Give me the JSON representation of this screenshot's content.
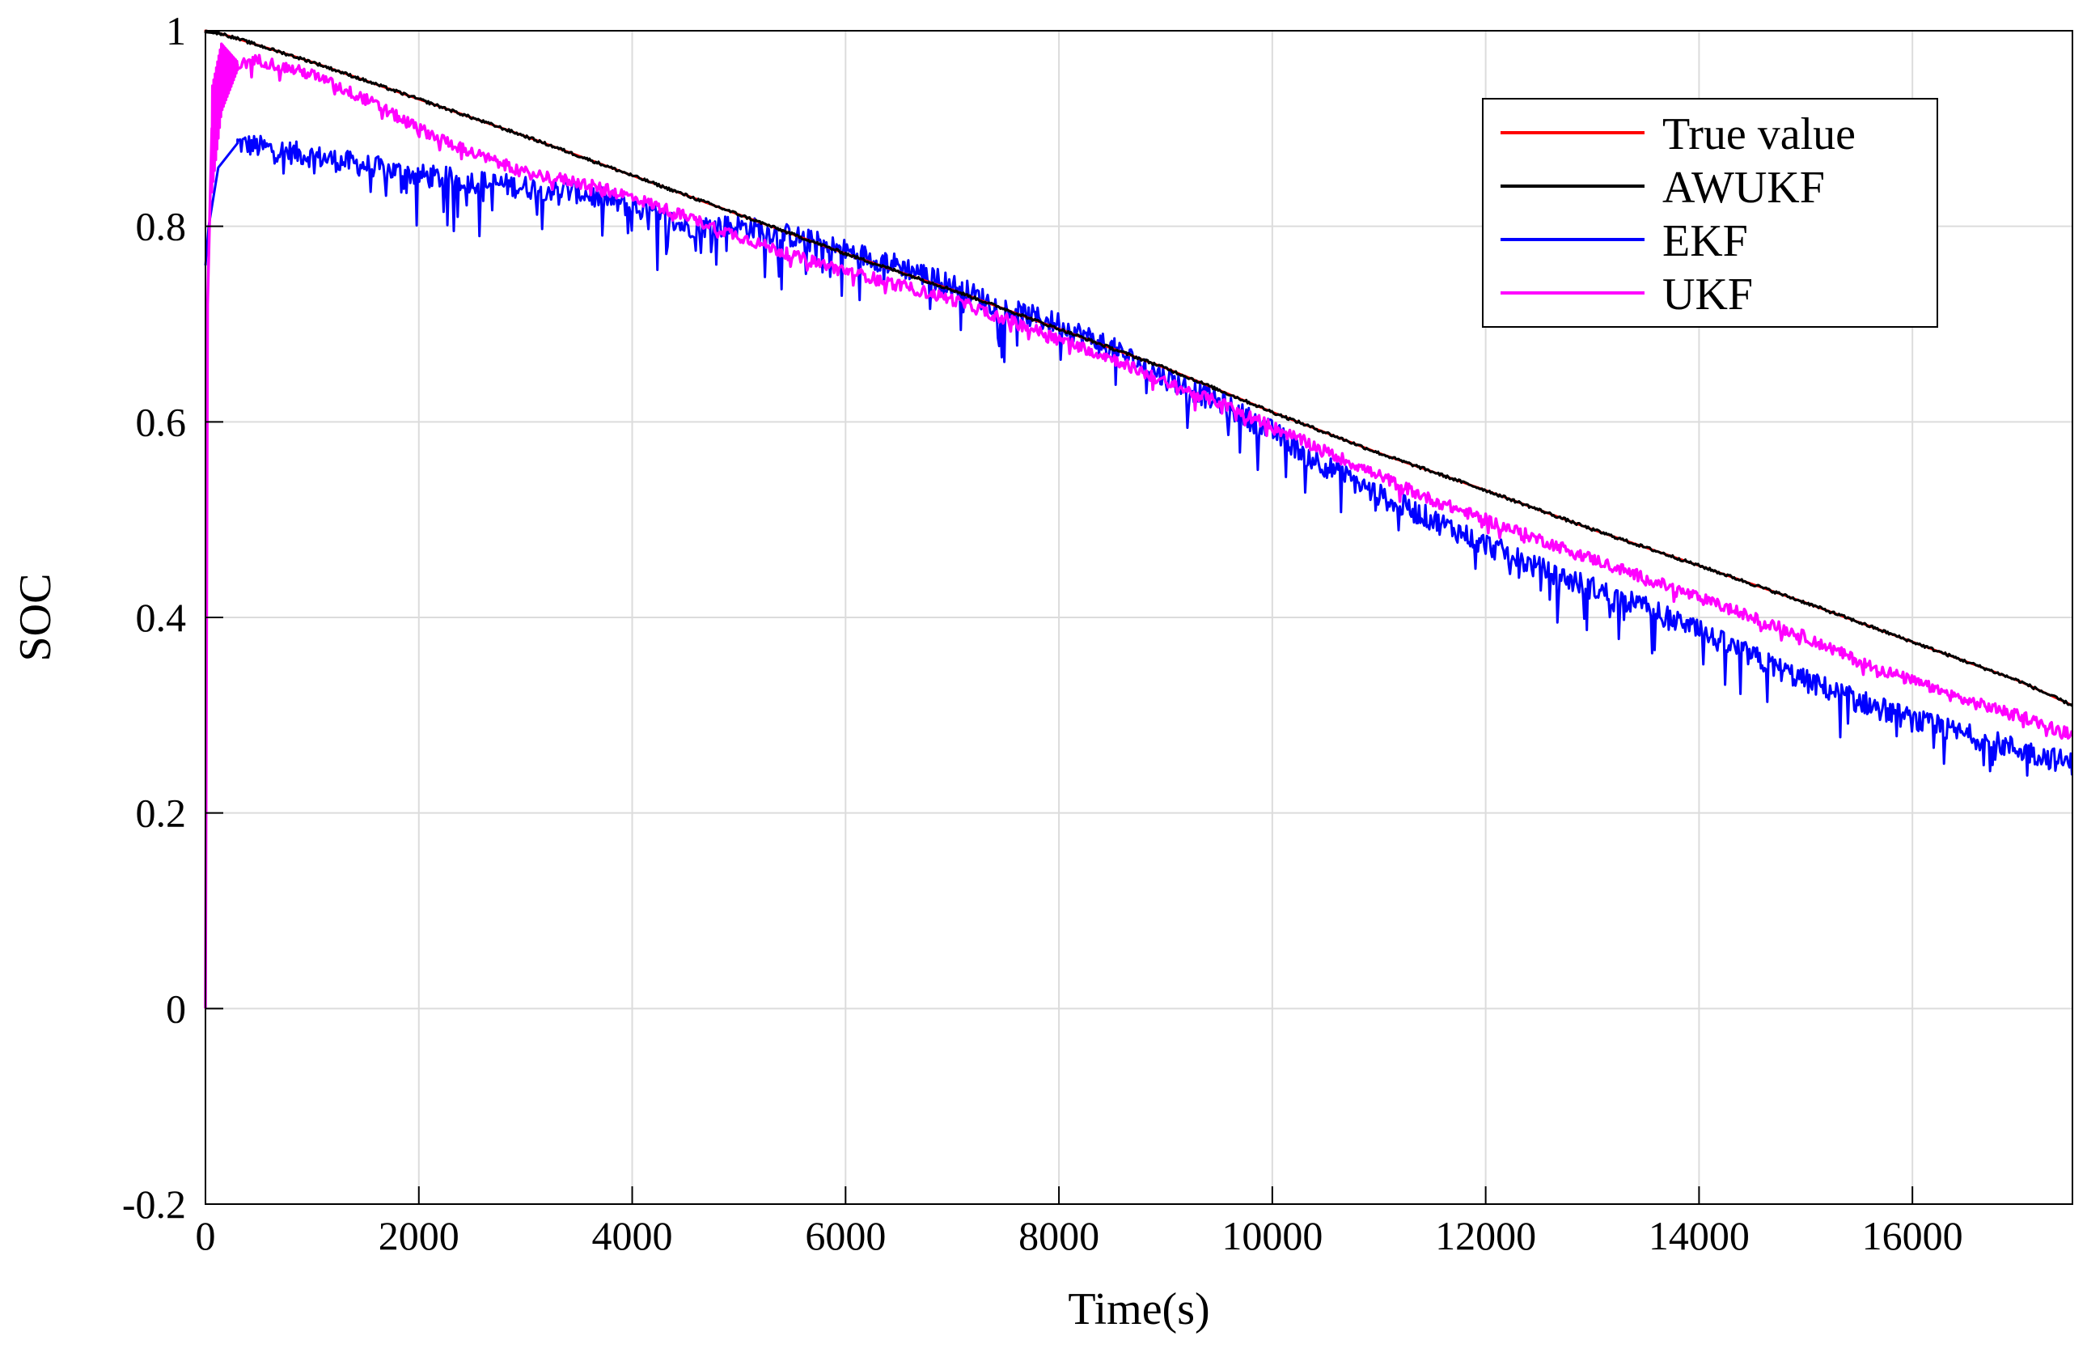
{
  "chart_data": {
    "type": "line",
    "title": "",
    "xlabel": "Time(s)",
    "ylabel": "SOC",
    "xlim": [
      0,
      17500
    ],
    "ylim": [
      -0.2,
      1
    ],
    "xticks": [
      0,
      2000,
      4000,
      6000,
      8000,
      10000,
      12000,
      14000,
      16000
    ],
    "xtick_labels": [
      "0",
      "2000",
      "4000",
      "6000",
      "8000",
      "10000",
      "12000",
      "14000",
      "16000"
    ],
    "yticks": [
      -0.2,
      0,
      0.2,
      0.4,
      0.6,
      0.8,
      1
    ],
    "ytick_labels": [
      "-0.2",
      "0",
      "0.2",
      "0.4",
      "0.6",
      "0.8",
      "1"
    ],
    "grid": true,
    "legend_position": "top-right",
    "series": [
      {
        "name": "True value",
        "color": "#ff0000",
        "x": [
          0,
          150,
          500,
          1000,
          2000,
          3000,
          4000,
          5000,
          6000,
          7000,
          8000,
          9000,
          10000,
          11000,
          12000,
          13000,
          14000,
          15000,
          16000,
          17000,
          17500
        ],
        "y": [
          1.0,
          0.997,
          0.985,
          0.968,
          0.93,
          0.892,
          0.852,
          0.812,
          0.772,
          0.735,
          0.695,
          0.655,
          0.61,
          0.568,
          0.53,
          0.49,
          0.453,
          0.415,
          0.375,
          0.335,
          0.31
        ]
      },
      {
        "name": "AWUKF",
        "color": "#000000",
        "x": [
          0,
          150,
          500,
          1000,
          2000,
          3000,
          4000,
          5000,
          6000,
          7000,
          8000,
          9000,
          10000,
          11000,
          12000,
          13000,
          14000,
          15000,
          16000,
          17000,
          17500
        ],
        "y": [
          1.0,
          0.997,
          0.985,
          0.968,
          0.93,
          0.892,
          0.852,
          0.812,
          0.772,
          0.735,
          0.695,
          0.655,
          0.61,
          0.568,
          0.53,
          0.49,
          0.453,
          0.415,
          0.375,
          0.335,
          0.31
        ]
      },
      {
        "name": "EKF",
        "color": "#0000ff",
        "x": [
          0,
          30,
          120,
          300,
          1000,
          2000,
          3000,
          3500,
          4000,
          4500,
          5000,
          5500,
          6000,
          6500,
          7000,
          7500,
          8000,
          8500,
          9000,
          9500,
          10000,
          10500,
          11000,
          11500,
          12000,
          12500,
          13000,
          13500,
          14000,
          14500,
          15000,
          15500,
          16000,
          16500,
          17000,
          17500
        ],
        "y": [
          0.76,
          0.8,
          0.86,
          0.885,
          0.872,
          0.852,
          0.84,
          0.835,
          0.82,
          0.8,
          0.8,
          0.79,
          0.775,
          0.76,
          0.74,
          0.715,
          0.7,
          0.675,
          0.645,
          0.62,
          0.59,
          0.555,
          0.525,
          0.5,
          0.475,
          0.45,
          0.43,
          0.41,
          0.385,
          0.36,
          0.335,
          0.315,
          0.295,
          0.28,
          0.265,
          0.25
        ]
      },
      {
        "name": "UKF",
        "color": "#ff00ff",
        "x": [
          0,
          20,
          60,
          150,
          300,
          500,
          1000,
          1500,
          2000,
          2500,
          3000,
          3500,
          4000,
          4500,
          5000,
          5500,
          6000,
          6500,
          7000,
          7500,
          8000,
          8500,
          9000,
          9500,
          10000,
          10500,
          11000,
          11500,
          12000,
          12500,
          13000,
          13500,
          14000,
          14500,
          15000,
          15500,
          16000,
          16500,
          17000,
          17500
        ],
        "y": [
          0.0,
          0.72,
          0.9,
          0.96,
          0.965,
          0.97,
          0.955,
          0.93,
          0.9,
          0.875,
          0.855,
          0.845,
          0.83,
          0.81,
          0.79,
          0.77,
          0.755,
          0.74,
          0.725,
          0.705,
          0.685,
          0.665,
          0.64,
          0.62,
          0.595,
          0.57,
          0.545,
          0.52,
          0.5,
          0.48,
          0.46,
          0.44,
          0.42,
          0.4,
          0.38,
          0.355,
          0.335,
          0.315,
          0.3,
          0.28
        ]
      }
    ]
  }
}
